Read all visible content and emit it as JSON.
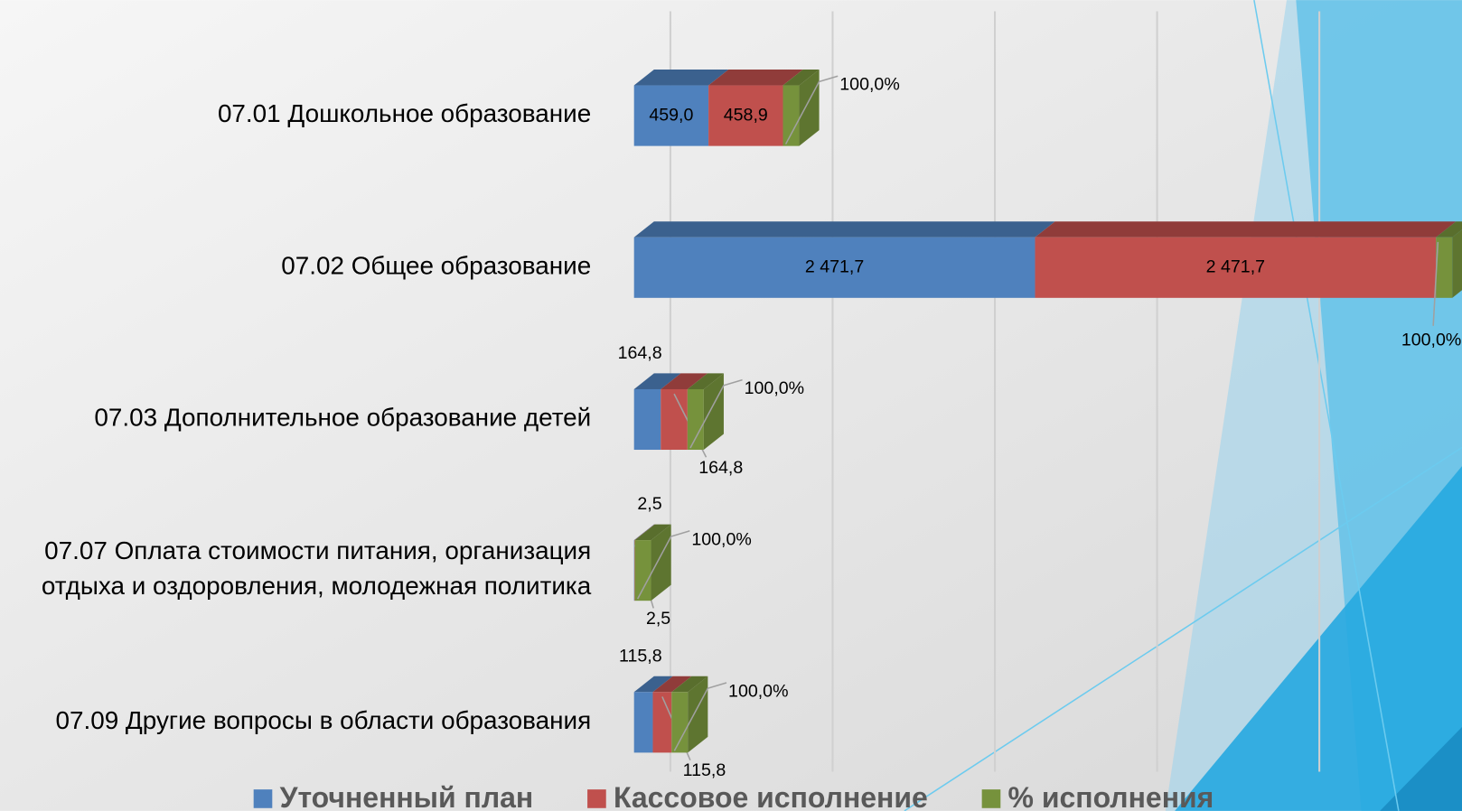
{
  "chart_data": {
    "type": "bar3d_stacked_horizontal",
    "categories": [
      "07.01 Дошкольное  образование",
      "07.02 Общее образование",
      "07.03 Дополнительное  образование  детей",
      "07.07 Оплата стоимости питания, организация\nотдыха и оздоровления, молодежная политика",
      "07.09 Другие вопросы в области образования"
    ],
    "series": [
      {
        "name": "Уточненный план",
        "color": "#4f81bd",
        "values": [
          459.0,
          2471.7,
          164.8,
          2.5,
          115.8
        ],
        "value_labels": [
          "459,0",
          "2 471,7",
          "164,8",
          "2,5",
          "115,8"
        ]
      },
      {
        "name": "Кассовое исполнение",
        "color": "#c0504d",
        "values": [
          458.9,
          2471.7,
          164.8,
          2.5,
          115.8
        ],
        "value_labels": [
          "458,9",
          "2 471,7",
          "164,8",
          "2,5",
          "115,8"
        ]
      },
      {
        "name": "% исполнения",
        "color": "#76923c",
        "values": [
          100,
          100,
          100,
          100,
          100
        ],
        "value_labels": [
          "100,0%",
          "100,0%",
          "100,0%",
          "100,0%",
          "100,0%"
        ]
      }
    ],
    "xlim": [
      0,
      5000
    ],
    "xticks": [
      0,
      1000,
      2000,
      3000,
      4000
    ],
    "grid": true,
    "legend": "bottom"
  }
}
